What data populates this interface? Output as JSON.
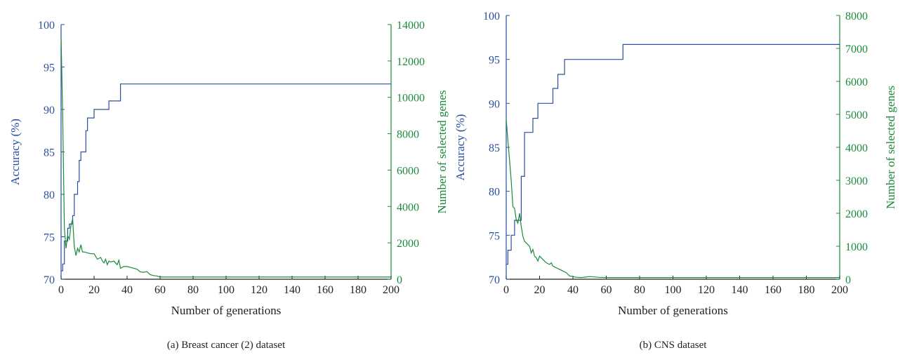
{
  "colors": {
    "accuracy": "#2a4fa0",
    "genes": "#1a8a3a",
    "axis": "#222222"
  },
  "chart_data": [
    {
      "type": "line",
      "caption": "(a) Breast cancer (2) dataset",
      "xlabel": "Number of generations",
      "ylabel_left": "Accuracy (%)",
      "ylabel_right": "Number of selected genes",
      "xlim": [
        0,
        200
      ],
      "ylim_left": [
        70,
        100
      ],
      "ylim_right": [
        0,
        14000
      ],
      "xticks": [
        0,
        20,
        40,
        60,
        80,
        100,
        120,
        140,
        160,
        180,
        200
      ],
      "yticks_left": [
        70,
        75,
        80,
        85,
        90,
        95,
        100
      ],
      "yticks_right": [
        0,
        2000,
        4000,
        6000,
        8000,
        10000,
        12000,
        14000
      ],
      "series": [
        {
          "axis": "left",
          "step": true,
          "x": [
            0,
            1,
            2,
            4,
            5,
            7,
            8,
            9,
            10,
            11,
            12,
            13,
            15,
            16,
            17,
            19,
            20,
            23,
            28,
            29,
            31,
            34,
            36,
            200
          ],
          "y": [
            71,
            71.8,
            74.5,
            76,
            76.5,
            77.5,
            80,
            80,
            81.5,
            84,
            85,
            85,
            87.5,
            89,
            89,
            89,
            90,
            90,
            90,
            91,
            91,
            91,
            93,
            93
          ]
        },
        {
          "axis": "right",
          "step": false,
          "x": [
            0,
            1,
            2,
            3,
            4,
            5,
            6,
            7,
            8,
            9,
            10,
            11,
            12,
            13,
            14,
            16,
            18,
            20,
            22,
            24,
            25,
            26,
            27,
            28,
            29,
            30,
            32,
            34,
            35,
            36,
            38,
            40,
            42,
            44,
            46,
            48,
            50,
            52,
            54,
            56,
            58,
            60,
            70,
            100,
            150,
            200
          ],
          "y": [
            13300,
            9000,
            2800,
            1700,
            2400,
            2200,
            3000,
            3300,
            1800,
            1300,
            1700,
            1500,
            1900,
            1500,
            1500,
            1450,
            1400,
            1400,
            1100,
            1200,
            1000,
            900,
            1100,
            800,
            1000,
            950,
            1000,
            800,
            1050,
            600,
            700,
            700,
            650,
            600,
            550,
            400,
            380,
            420,
            250,
            200,
            180,
            120,
            120,
            120,
            120,
            120
          ]
        }
      ]
    },
    {
      "type": "line",
      "caption": "(b) CNS dataset",
      "xlabel": "Number of generations",
      "ylabel_left": "Accuracy (%)",
      "ylabel_right": "Number of selected genes",
      "xlim": [
        0,
        200
      ],
      "ylim_left": [
        70,
        100
      ],
      "ylim_right": [
        0,
        8000
      ],
      "xticks": [
        0,
        20,
        40,
        60,
        80,
        100,
        120,
        140,
        160,
        180,
        200
      ],
      "yticks_left": [
        70,
        75,
        80,
        85,
        90,
        95,
        100
      ],
      "yticks_right": [
        0,
        1000,
        2000,
        3000,
        4000,
        5000,
        6000,
        7000,
        8000
      ],
      "series": [
        {
          "axis": "left",
          "step": true,
          "x": [
            0,
            1,
            3,
            5,
            7,
            9,
            10,
            11,
            12,
            16,
            18,
            19,
            21,
            27,
            28,
            30,
            31,
            33,
            35,
            68,
            70,
            200
          ],
          "y": [
            71.7,
            73.3,
            75,
            76.7,
            76.7,
            81.7,
            81.7,
            86.7,
            86.7,
            88.3,
            88.3,
            90,
            90,
            90,
            91.7,
            91.7,
            93.3,
            93.3,
            95,
            95,
            96.7,
            96.7
          ]
        },
        {
          "axis": "right",
          "step": false,
          "x": [
            0,
            1,
            2,
            3,
            4,
            5,
            6,
            7,
            8,
            9,
            10,
            11,
            12,
            14,
            15,
            16,
            17,
            18,
            19,
            20,
            22,
            24,
            26,
            27,
            28,
            30,
            32,
            34,
            36,
            38,
            40,
            42,
            45,
            50,
            55,
            60,
            80,
            100,
            150,
            200
          ],
          "y": [
            4850,
            4200,
            3600,
            3000,
            2200,
            2150,
            1800,
            1700,
            2000,
            1600,
            1300,
            1150,
            1100,
            1000,
            800,
            900,
            700,
            650,
            550,
            700,
            600,
            500,
            450,
            500,
            400,
            350,
            300,
            250,
            200,
            100,
            80,
            60,
            50,
            80,
            60,
            50,
            50,
            50,
            50,
            50
          ]
        }
      ]
    }
  ]
}
